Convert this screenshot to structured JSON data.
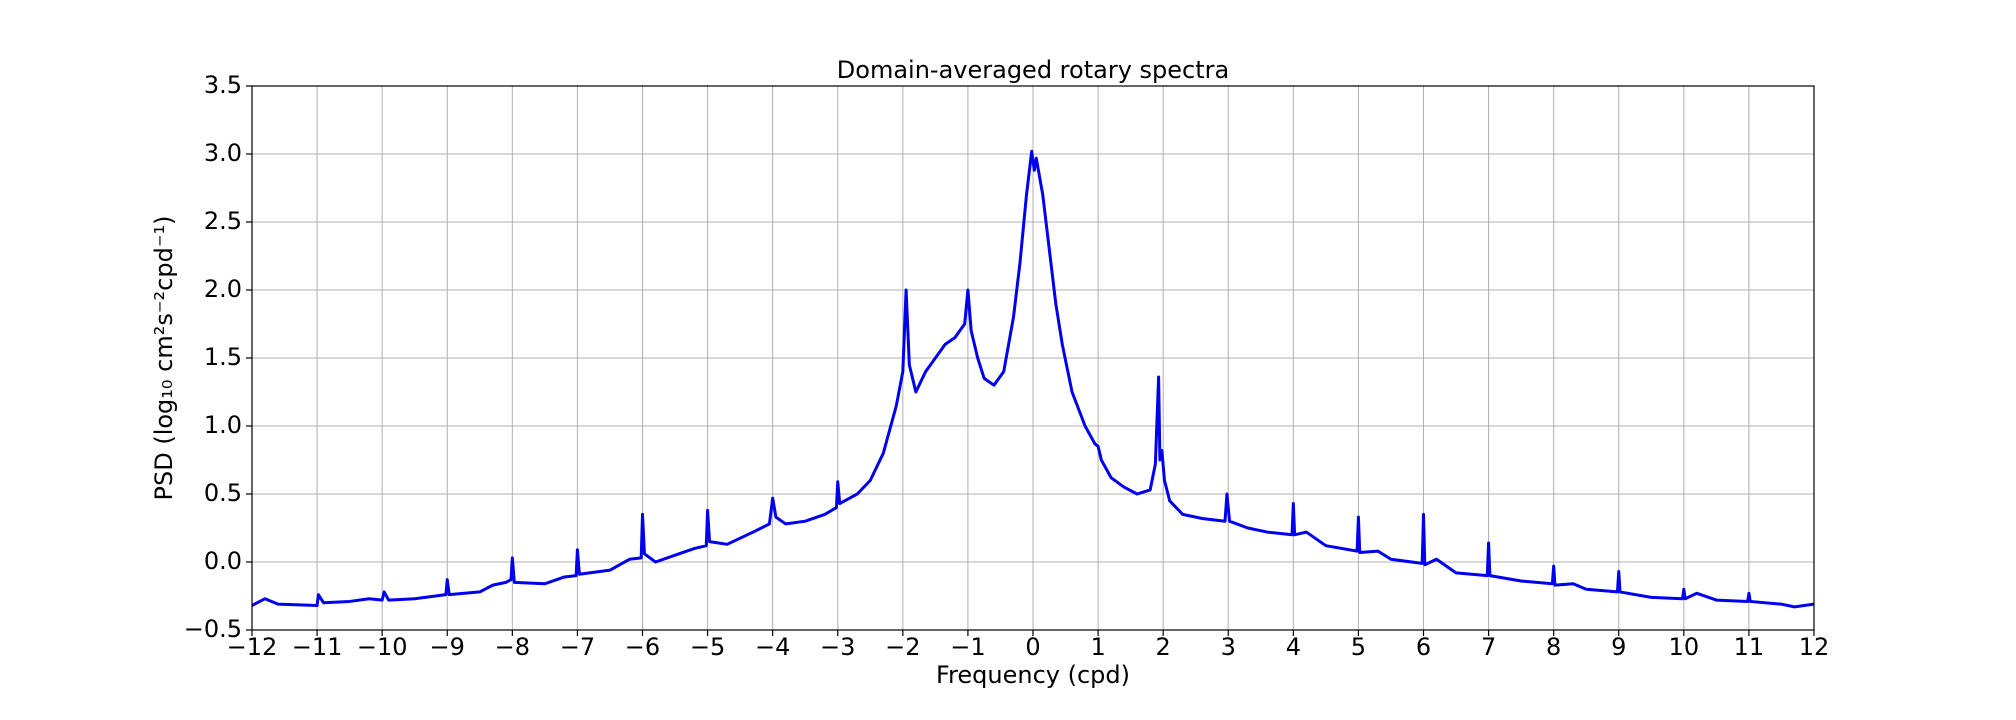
{
  "chart_data": {
    "type": "line",
    "title": "Domain-averaged rotary spectra",
    "x_label": "Frequency (cpd)",
    "y_label": "PSD (log₁₀ cm²s⁻²cpd⁻¹)",
    "xlim": [
      -12,
      12
    ],
    "ylim": [
      -0.5,
      3.5
    ],
    "xticks": [
      {
        "value": -12,
        "label": "−12"
      },
      {
        "value": -11,
        "label": "−11"
      },
      {
        "value": -10,
        "label": "−10"
      },
      {
        "value": -9,
        "label": "−9"
      },
      {
        "value": -8,
        "label": "−8"
      },
      {
        "value": -7,
        "label": "−7"
      },
      {
        "value": -6,
        "label": "−6"
      },
      {
        "value": -5,
        "label": "−5"
      },
      {
        "value": -4,
        "label": "−4"
      },
      {
        "value": -3,
        "label": "−3"
      },
      {
        "value": -2,
        "label": "−2"
      },
      {
        "value": -1,
        "label": "−1"
      },
      0,
      1,
      2,
      3,
      4,
      5,
      6,
      7,
      8,
      9,
      10,
      11,
      12
    ],
    "yticks": [
      {
        "value": -0.5,
        "label": "−0.5"
      },
      {
        "value": 0,
        "label": "0.0"
      },
      0.5,
      {
        "value": 1,
        "label": "1.0"
      },
      1.5,
      {
        "value": 2,
        "label": "2.0"
      },
      2.5,
      {
        "value": 3,
        "label": "3.0"
      },
      3.5
    ],
    "grid": true,
    "series": [
      {
        "color": "#0000ee",
        "x": [
          -12,
          -11.8,
          -11.6,
          -11.0,
          -10.98,
          -10.9,
          -10.5,
          -10.2,
          -10.0,
          -9.97,
          -9.9,
          -9.5,
          -9.02,
          -9.0,
          -8.97,
          -8.5,
          -8.3,
          -8.1,
          -8.02,
          -8.0,
          -7.97,
          -7.5,
          -7.2,
          -7.02,
          -7.0,
          -6.97,
          -6.5,
          -6.2,
          -6.02,
          -6.0,
          -5.97,
          -5.8,
          -5.5,
          -5.2,
          -5.02,
          -5.0,
          -4.97,
          -4.7,
          -4.3,
          -4.05,
          -4.0,
          -3.95,
          -3.8,
          -3.5,
          -3.2,
          -3.02,
          -3.0,
          -2.97,
          -2.7,
          -2.5,
          -2.3,
          -2.1,
          -2.0,
          -1.95,
          -1.9,
          -1.8,
          -1.65,
          -1.5,
          -1.35,
          -1.2,
          -1.05,
          -1.0,
          -0.95,
          -0.85,
          -0.75,
          -0.6,
          -0.45,
          -0.3,
          -0.2,
          -0.1,
          -0.02,
          0.02,
          0.05,
          0.15,
          0.25,
          0.35,
          0.45,
          0.6,
          0.8,
          0.95,
          1.0,
          1.05,
          1.2,
          1.4,
          1.6,
          1.8,
          1.88,
          1.93,
          1.95,
          1.98,
          2.02,
          2.1,
          2.3,
          2.6,
          2.95,
          2.98,
          3.02,
          3.3,
          3.6,
          3.98,
          4.0,
          4.02,
          4.2,
          4.5,
          4.98,
          5.0,
          5.02,
          5.3,
          5.5,
          5.98,
          6.0,
          6.02,
          6.2,
          6.5,
          6.98,
          7.0,
          7.02,
          7.5,
          7.98,
          8.0,
          8.02,
          8.3,
          8.5,
          8.98,
          9.0,
          9.02,
          9.5,
          9.98,
          10.0,
          10.02,
          10.2,
          10.5,
          10.98,
          11.0,
          11.02,
          11.5,
          11.7,
          12.0
        ],
        "values": [
          -0.32,
          -0.27,
          -0.31,
          -0.32,
          -0.24,
          -0.3,
          -0.29,
          -0.27,
          -0.28,
          -0.22,
          -0.28,
          -0.27,
          -0.24,
          -0.13,
          -0.24,
          -0.22,
          -0.17,
          -0.15,
          -0.13,
          0.03,
          -0.15,
          -0.16,
          -0.11,
          -0.1,
          0.09,
          -0.09,
          -0.06,
          0.02,
          0.03,
          0.35,
          0.06,
          0.0,
          0.05,
          0.1,
          0.12,
          0.38,
          0.15,
          0.13,
          0.22,
          0.28,
          0.47,
          0.33,
          0.28,
          0.3,
          0.35,
          0.4,
          0.59,
          0.43,
          0.5,
          0.6,
          0.8,
          1.15,
          1.4,
          2.0,
          1.45,
          1.25,
          1.4,
          1.5,
          1.6,
          1.65,
          1.75,
          2.0,
          1.7,
          1.5,
          1.35,
          1.3,
          1.4,
          1.8,
          2.2,
          2.7,
          3.02,
          2.88,
          2.97,
          2.7,
          2.3,
          1.9,
          1.6,
          1.25,
          1.0,
          0.87,
          0.85,
          0.75,
          0.62,
          0.55,
          0.5,
          0.53,
          0.72,
          1.36,
          0.75,
          0.82,
          0.6,
          0.45,
          0.35,
          0.32,
          0.3,
          0.5,
          0.3,
          0.25,
          0.22,
          0.2,
          0.43,
          0.2,
          0.22,
          0.12,
          0.08,
          0.33,
          0.07,
          0.08,
          0.02,
          -0.01,
          0.35,
          -0.02,
          0.02,
          -0.08,
          -0.1,
          0.14,
          -0.1,
          -0.14,
          -0.16,
          -0.03,
          -0.17,
          -0.16,
          -0.2,
          -0.22,
          -0.07,
          -0.22,
          -0.26,
          -0.27,
          -0.2,
          -0.27,
          -0.23,
          -0.28,
          -0.29,
          -0.23,
          -0.29,
          -0.31,
          -0.33,
          -0.31
        ]
      }
    ]
  }
}
